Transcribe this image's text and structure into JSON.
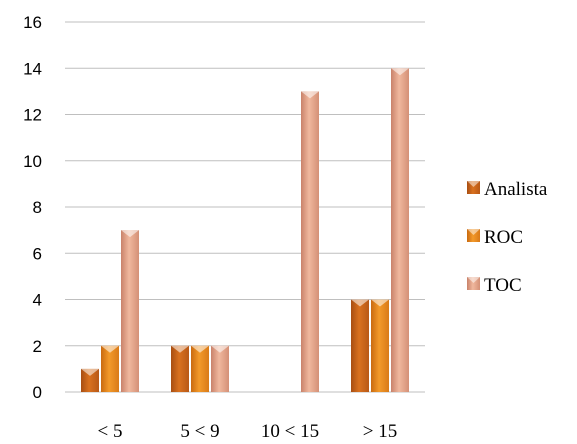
{
  "chart_data": {
    "type": "bar",
    "categories": [
      "< 5",
      "5 < 9",
      "10 < 15",
      "> 15"
    ],
    "series": [
      {
        "name": "Analista",
        "values": [
          1,
          2,
          0,
          4
        ]
      },
      {
        "name": "ROC",
        "values": [
          2,
          2,
          0,
          4
        ]
      },
      {
        "name": "TOC",
        "values": [
          7,
          2,
          13,
          14
        ]
      }
    ],
    "ylim": [
      0,
      16
    ],
    "yticks": [
      0,
      2,
      4,
      6,
      8,
      10,
      12,
      14,
      16
    ],
    "grid": true,
    "legend": "right",
    "colors": {
      "Analista": "#c8641c",
      "ROC": "#e8861e",
      "TOC": "#e0a084",
      "grid": "#bfbfbf"
    }
  }
}
